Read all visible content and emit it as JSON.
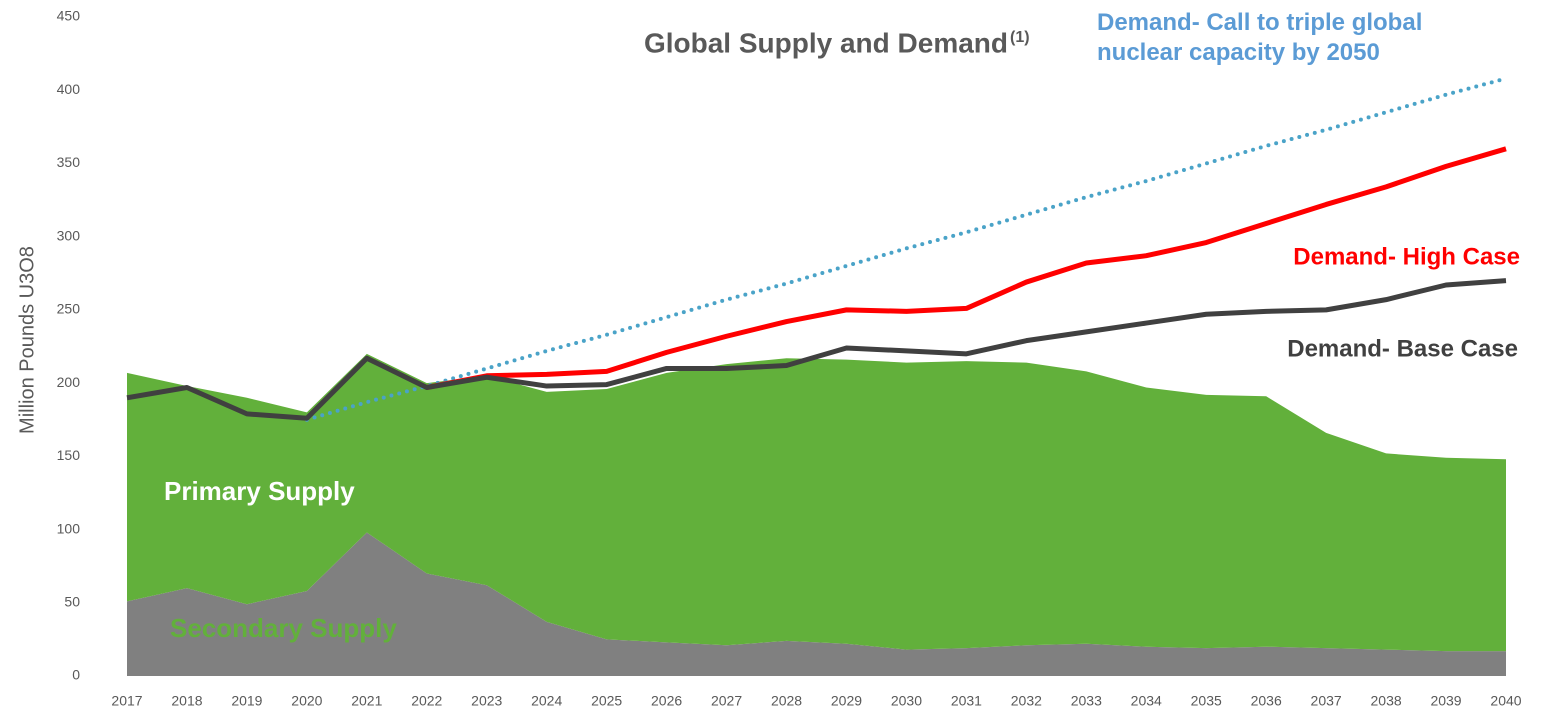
{
  "chart_data": {
    "type": "area-line",
    "title": "Global Supply and Demand",
    "title_note": "(1)",
    "y_label": "Million Pounds U3O8",
    "categories": [
      "2017",
      "2018",
      "2019",
      "2020",
      "2021",
      "2022",
      "2023",
      "2024",
      "2025",
      "2026",
      "2027",
      "2028",
      "2029",
      "2030",
      "2031",
      "2032",
      "2033",
      "2034",
      "2035",
      "2036",
      "2037",
      "2038",
      "2039",
      "2040"
    ],
    "ylim": [
      0,
      450
    ],
    "yticks": [
      0,
      50,
      100,
      150,
      200,
      250,
      300,
      350,
      400,
      450
    ],
    "series": [
      {
        "name": "Secondary Supply",
        "kind": "stacked-area",
        "color": "#808080",
        "values": [
          51,
          60,
          49,
          58,
          98,
          70,
          62,
          37,
          25,
          23,
          21,
          24,
          22,
          18,
          19,
          21,
          22,
          20,
          19,
          20,
          19,
          18,
          17,
          17
        ]
      },
      {
        "name": "Primary Supply",
        "kind": "stacked-area",
        "color": "#62b03b",
        "values": [
          156,
          138,
          141,
          122,
          122,
          130,
          143,
          157,
          171,
          184,
          192,
          193,
          194,
          196,
          196,
          193,
          186,
          177,
          173,
          171,
          147,
          134,
          132,
          131
        ]
      },
      {
        "name": "Demand- Call to triple global nuclear capacity by 2050",
        "kind": "dotted-line",
        "color": "#4aa3c8",
        "values": [
          null,
          null,
          null,
          175,
          187,
          198,
          210,
          222,
          233,
          245,
          257,
          268,
          280,
          292,
          303,
          315,
          327,
          338,
          350,
          362,
          373,
          385,
          397,
          408
        ]
      },
      {
        "name": "Demand- High Case",
        "kind": "line",
        "color": "#ff0000",
        "values": [
          null,
          null,
          null,
          null,
          null,
          197,
          205,
          206,
          208,
          221,
          232,
          242,
          250,
          249,
          251,
          269,
          282,
          287,
          296,
          309,
          322,
          334,
          348,
          360
        ]
      },
      {
        "name": "Demand- Base Case",
        "kind": "line",
        "color": "#404040",
        "values": [
          190,
          197,
          179,
          176,
          217,
          197,
          204,
          198,
          199,
          210,
          210,
          212,
          224,
          222,
          220,
          229,
          235,
          241,
          247,
          249,
          250,
          257,
          267,
          270
        ]
      }
    ]
  }
}
